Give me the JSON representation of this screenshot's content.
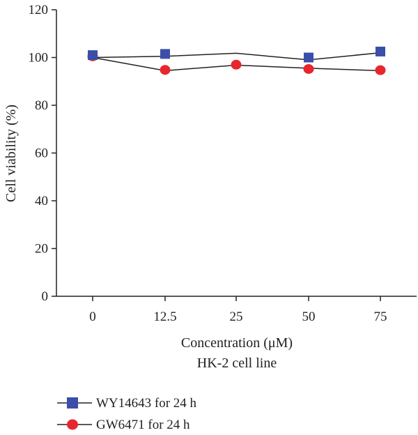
{
  "chart_data": {
    "type": "line",
    "title": "",
    "xlabel": "Concentration (μM)",
    "xlabel_sub": "HK-2 cell line",
    "ylabel": "Cell viability (%)",
    "categories": [
      "0",
      "12.5",
      "25",
      "50",
      "75"
    ],
    "ylim": [
      0,
      120
    ],
    "yticks": [
      "0",
      "20",
      "40",
      "60",
      "80",
      "100",
      "120"
    ],
    "grid": false,
    "legend_position": "bottom-left",
    "series": [
      {
        "name": "WY14643 for 24 h",
        "marker": "square",
        "color": "#3b4fa8",
        "line_values": [
          100,
          100.5,
          101.8,
          99,
          102
        ],
        "marker_values": [
          101,
          101.5,
          null,
          100,
          102.5
        ]
      },
      {
        "name": "GW6471 for 24 h",
        "marker": "circle",
        "color": "#e8262d",
        "line_values": [
          100,
          94.5,
          96.8,
          95.5,
          94.5
        ],
        "marker_values": [
          100.5,
          94.8,
          97,
          95.2,
          94.7
        ]
      }
    ]
  }
}
